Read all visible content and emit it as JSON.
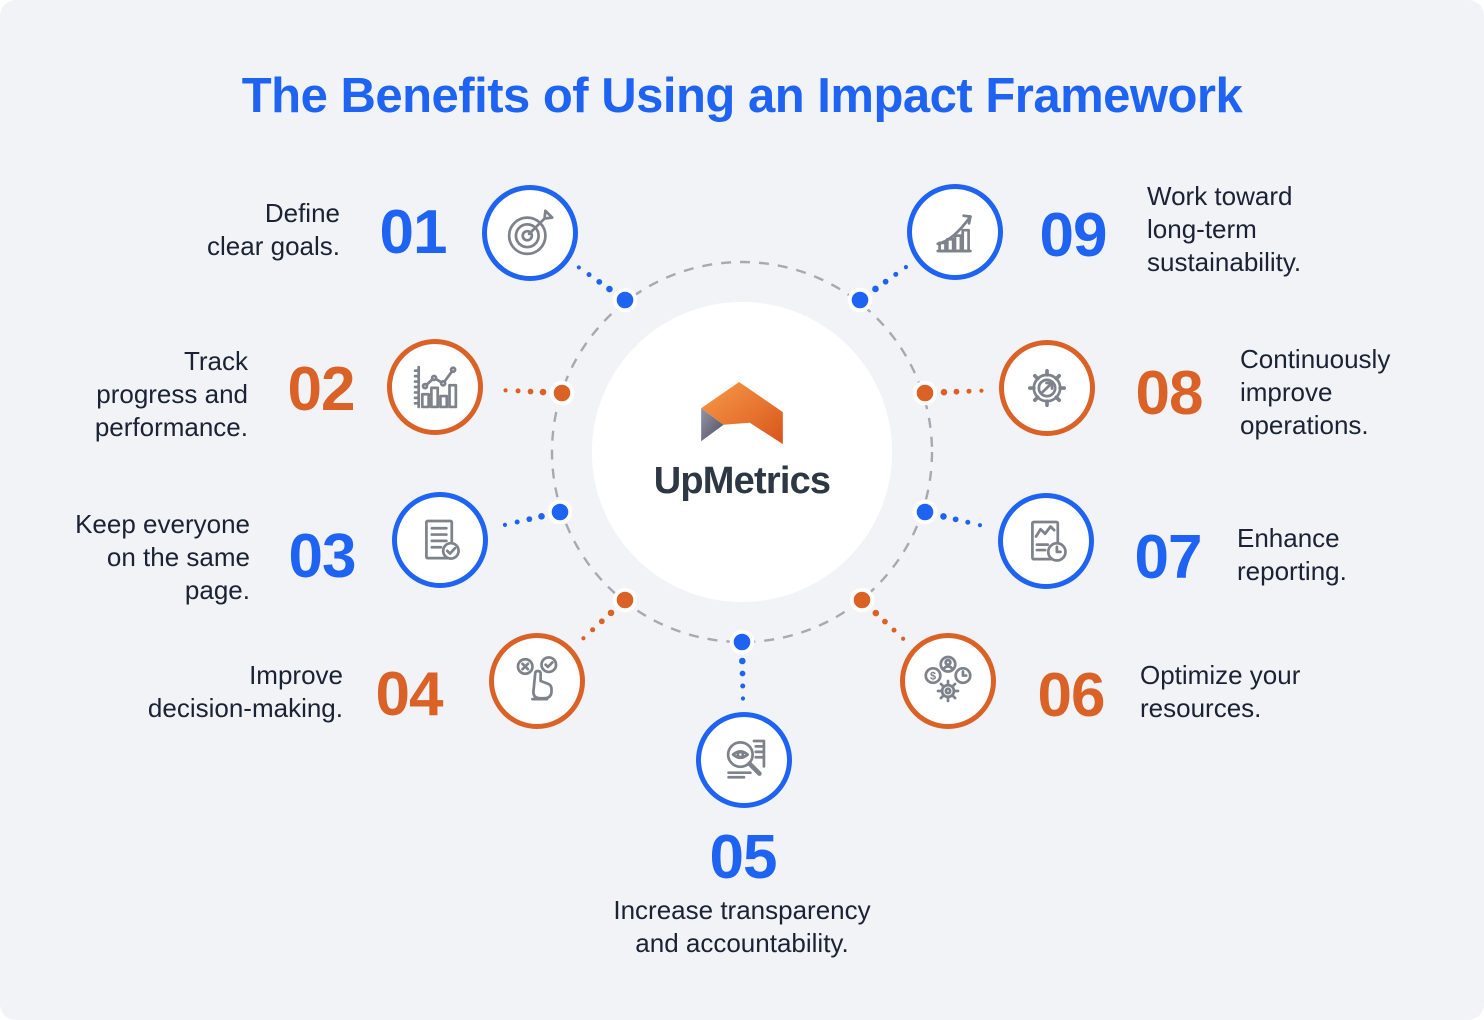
{
  "title": "The Benefits of Using an Impact Framework",
  "brand": {
    "name": "UpMetrics"
  },
  "colors": {
    "blue": "#1e63f1",
    "orange": "#da6227",
    "text_dark": "#1a2233",
    "background": "#f1f3f7",
    "icon_gray": "#7e828a",
    "ring_gray": "#a5aab2",
    "wordmark_dark": "#2e3844",
    "logo_orange_light": "#f89b4b",
    "logo_orange_dark": "#d8551a",
    "logo_gray_light": "#9496a6",
    "logo_gray_dark": "#4d4f61"
  },
  "items": [
    {
      "number": "01",
      "color": "blue",
      "icon": "target-dart-icon",
      "label": "Define clear goals.",
      "lines": [
        "Define",
        "clear goals."
      ]
    },
    {
      "number": "02",
      "color": "orange",
      "icon": "bar-chart-trend-icon",
      "label": "Track progress and performance.",
      "lines": [
        "Track",
        "progress and",
        "performance."
      ]
    },
    {
      "number": "03",
      "color": "blue",
      "icon": "document-check-icon",
      "label": "Keep everyone on the same page.",
      "lines": [
        "Keep everyone",
        "on the same",
        "page."
      ]
    },
    {
      "number": "04",
      "color": "orange",
      "icon": "decision-hand-icon",
      "label": "Improve decision-making.",
      "lines": [
        "Improve",
        "decision-making."
      ]
    },
    {
      "number": "05",
      "color": "blue",
      "icon": "magnifier-eye-icon",
      "label": "Increase transparency and accountability.",
      "lines": [
        "Increase transparency",
        "and accountability."
      ]
    },
    {
      "number": "06",
      "color": "orange",
      "icon": "resources-icon",
      "label": "Optimize your resources.",
      "lines": [
        "Optimize your",
        "resources."
      ]
    },
    {
      "number": "07",
      "color": "blue",
      "icon": "report-clock-icon",
      "label": "Enhance reporting.",
      "lines": [
        "Enhance",
        "reporting."
      ]
    },
    {
      "number": "08",
      "color": "orange",
      "icon": "gear-improve-icon",
      "label": "Continuously improve operations.",
      "lines": [
        "Continuously",
        "improve",
        "operations."
      ]
    },
    {
      "number": "09",
      "color": "blue",
      "icon": "growth-chart-icon",
      "label": "Work toward long-term sustainability.",
      "lines": [
        "Work toward",
        "long-term",
        "sustainability."
      ]
    }
  ]
}
